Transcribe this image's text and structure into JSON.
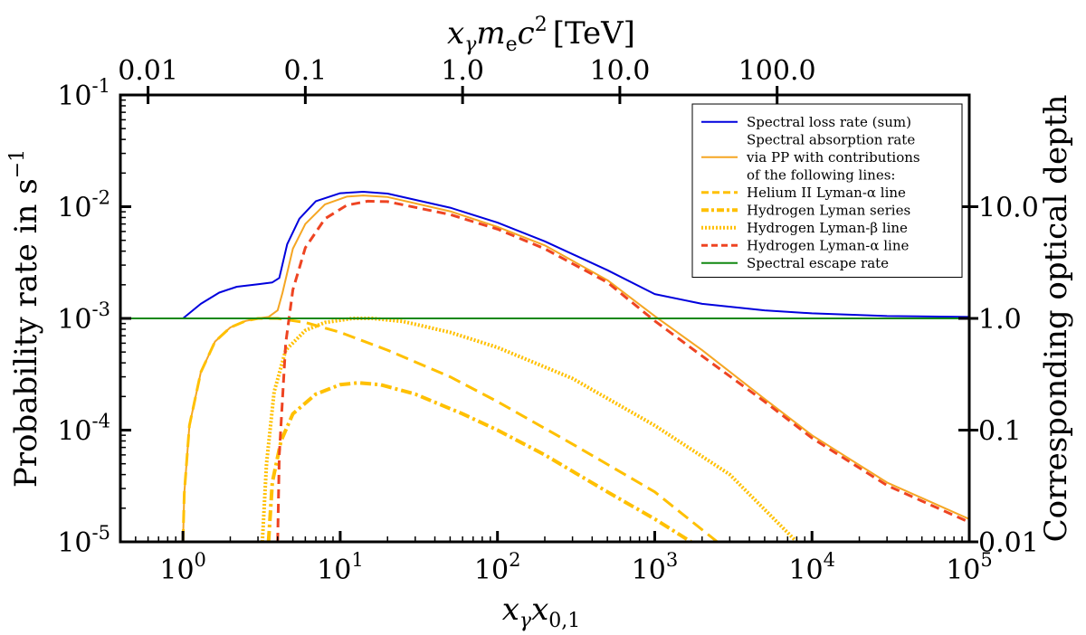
{
  "chart_data": {
    "type": "line",
    "xscale": "log",
    "yscale": "log",
    "xlim": [
      0.4,
      100000
    ],
    "ylim": [
      1e-05,
      0.1
    ],
    "xlabel_main": "x",
    "xlabel_sub1": "γ",
    "xlabel_mid": "x",
    "xlabel_sub2": "0,1",
    "ylabel_left": "Probability rate in s",
    "ylabel_left_sup": "−1",
    "ylabel_right": "Corresponding optical depth",
    "top_axis_label": "x",
    "top_axis_sub": "γ",
    "top_axis_m": "m",
    "top_axis_e": "e",
    "top_axis_c": "c",
    "top_axis_sup": "2",
    "top_axis_unit": "[TeV]",
    "x_ticks": [
      {
        "value": 1,
        "base": "10",
        "exp": "0"
      },
      {
        "value": 10,
        "base": "10",
        "exp": "1"
      },
      {
        "value": 100,
        "base": "10",
        "exp": "2"
      },
      {
        "value": 1000,
        "base": "10",
        "exp": "3"
      },
      {
        "value": 10000,
        "base": "10",
        "exp": "4"
      },
      {
        "value": 100000,
        "base": "10",
        "exp": "5"
      }
    ],
    "y_ticks": [
      {
        "value": 1e-05,
        "base": "10",
        "exp": "-5"
      },
      {
        "value": 0.0001,
        "base": "10",
        "exp": "-4"
      },
      {
        "value": 0.001,
        "base": "10",
        "exp": "-3"
      },
      {
        "value": 0.01,
        "base": "10",
        "exp": "-2"
      },
      {
        "value": 0.1,
        "base": "10",
        "exp": "-1"
      }
    ],
    "top_ticks": [
      {
        "value": 0.01,
        "x": 0.6,
        "label": "0.01"
      },
      {
        "value": 0.1,
        "x": 6,
        "label": "0.1"
      },
      {
        "value": 1.0,
        "x": 60,
        "label": "1.0"
      },
      {
        "value": 10.0,
        "x": 600,
        "label": "10.0"
      },
      {
        "value": 100.0,
        "x": 6000,
        "label": "100.0"
      }
    ],
    "right_ticks": [
      {
        "value": 0.01,
        "y": 1e-05,
        "label": "0.01"
      },
      {
        "value": 0.1,
        "y": 0.0001,
        "label": "0.1"
      },
      {
        "value": 1.0,
        "y": 0.001,
        "label": "1.0"
      },
      {
        "value": 10.0,
        "y": 0.01,
        "label": "10.0"
      }
    ],
    "series": [
      {
        "name": "Spectral loss rate (sum)",
        "color": "#0000dd",
        "dash": "",
        "width": 2,
        "points": [
          [
            0.4,
            0.001
          ],
          [
            1.0,
            0.001
          ],
          [
            1.3,
            0.00135
          ],
          [
            1.7,
            0.0017
          ],
          [
            2.2,
            0.00192
          ],
          [
            3.0,
            0.00202
          ],
          [
            3.7,
            0.0021
          ],
          [
            4.1,
            0.0023
          ],
          [
            4.6,
            0.0046
          ],
          [
            5.5,
            0.0078
          ],
          [
            7,
            0.0112
          ],
          [
            10,
            0.0132
          ],
          [
            14,
            0.0136
          ],
          [
            20,
            0.0131
          ],
          [
            50,
            0.0098
          ],
          [
            100,
            0.0072
          ],
          [
            200,
            0.0049
          ],
          [
            500,
            0.0027
          ],
          [
            1000,
            0.00165
          ],
          [
            2000,
            0.00135
          ],
          [
            5000,
            0.00118
          ],
          [
            10000,
            0.00111
          ],
          [
            30000,
            0.00105
          ],
          [
            100000,
            0.00103
          ]
        ]
      },
      {
        "name": "Spectral absorption rate via PP with contributions of the following lines:",
        "color": "#f5a623",
        "dash": "",
        "width": 2,
        "points": [
          [
            1.0,
            1e-05
          ],
          [
            1.02,
            2.7e-05
          ],
          [
            1.1,
            0.00011
          ],
          [
            1.3,
            0.00033
          ],
          [
            1.6,
            0.00062
          ],
          [
            2.0,
            0.00083
          ],
          [
            2.5,
            0.00095
          ],
          [
            3.0,
            0.001
          ],
          [
            3.5,
            0.00103
          ],
          [
            4.0,
            0.00118
          ],
          [
            4.3,
            0.0017
          ],
          [
            5,
            0.0042
          ],
          [
            6,
            0.007
          ],
          [
            8,
            0.0105
          ],
          [
            11,
            0.0123
          ],
          [
            14,
            0.0126
          ],
          [
            20,
            0.0122
          ],
          [
            50,
            0.0091
          ],
          [
            100,
            0.0066
          ],
          [
            200,
            0.0045
          ],
          [
            500,
            0.0022
          ],
          [
            1000,
            0.00105
          ],
          [
            2000,
            0.00052
          ],
          [
            5000,
            0.00019
          ],
          [
            10000,
            9e-05
          ],
          [
            30000,
            3.4e-05
          ],
          [
            100000,
            1.6e-05
          ]
        ]
      },
      {
        "name": "Helium II Lyman-α line",
        "color": "#ffc000",
        "dash": "14 7",
        "width": 3,
        "points": [
          [
            1.0,
            1e-05
          ],
          [
            1.02,
            2.7e-05
          ],
          [
            1.1,
            0.00011
          ],
          [
            1.3,
            0.00033
          ],
          [
            1.6,
            0.00062
          ],
          [
            2.0,
            0.00083
          ],
          [
            2.5,
            0.00095
          ],
          [
            3.0,
            0.001
          ],
          [
            4.0,
            0.001
          ],
          [
            6,
            0.00092
          ],
          [
            10,
            0.00075
          ],
          [
            20,
            0.00052
          ],
          [
            50,
            0.0003
          ],
          [
            100,
            0.00018
          ],
          [
            300,
            7.5e-05
          ],
          [
            1000,
            2.8e-05
          ],
          [
            2500,
            1e-05
          ]
        ]
      },
      {
        "name": "Hydrogen Lyman series",
        "color": "#ffc000",
        "dash": "12 4 3 4",
        "width": 4,
        "points": [
          [
            3.5,
            1e-05
          ],
          [
            3.7,
            3.4e-05
          ],
          [
            4.2,
            8e-05
          ],
          [
            5,
            0.00014
          ],
          [
            7,
            0.00021
          ],
          [
            10,
            0.000255
          ],
          [
            13,
            0.000265
          ],
          [
            18,
            0.000255
          ],
          [
            30,
            0.00021
          ],
          [
            60,
            0.00014
          ],
          [
            100,
            0.0001
          ],
          [
            200,
            6e-05
          ],
          [
            500,
            2.8e-05
          ],
          [
            1000,
            1.6e-05
          ],
          [
            1700,
            1e-05
          ]
        ]
      },
      {
        "name": "Hydrogen Lyman-β line",
        "color": "#ffc000",
        "dash": "2 2",
        "width": 4,
        "points": [
          [
            3.2,
            1e-05
          ],
          [
            3.4,
            5e-05
          ],
          [
            3.8,
            0.00022
          ],
          [
            4.5,
            0.00052
          ],
          [
            6,
            0.00078
          ],
          [
            8,
            0.00092
          ],
          [
            12,
            0.001
          ],
          [
            16,
            0.001
          ],
          [
            25,
            0.00094
          ],
          [
            50,
            0.00075
          ],
          [
            100,
            0.00055
          ],
          [
            300,
            0.00029
          ],
          [
            1000,
            0.00011
          ],
          [
            3000,
            4e-05
          ],
          [
            8000,
            1e-05
          ]
        ]
      },
      {
        "name": "Hydrogen Lyman-α line",
        "color": "#ee4422",
        "dash": "10 6",
        "width": 3,
        "points": [
          [
            4.0,
            1e-05
          ],
          [
            4.1,
            6e-05
          ],
          [
            4.5,
            0.0006
          ],
          [
            5,
            0.0018
          ],
          [
            6,
            0.0043
          ],
          [
            8,
            0.0078
          ],
          [
            11,
            0.0103
          ],
          [
            15,
            0.0112
          ],
          [
            20,
            0.0111
          ],
          [
            50,
            0.0085
          ],
          [
            100,
            0.0063
          ],
          [
            200,
            0.0042
          ],
          [
            500,
            0.0021
          ],
          [
            1000,
            0.00095
          ],
          [
            2000,
            0.00046
          ],
          [
            5000,
            0.00018
          ],
          [
            10000,
            8.5e-05
          ],
          [
            30000,
            3.2e-05
          ],
          [
            100000,
            1.5e-05
          ]
        ]
      },
      {
        "name": "Spectral escape rate",
        "color": "#118811",
        "dash": "",
        "width": 2,
        "points": [
          [
            0.4,
            0.001
          ],
          [
            100000,
            0.001
          ]
        ]
      }
    ],
    "legend": {
      "placement": "top-right",
      "entries": [
        {
          "lines": [
            "Spectral loss rate (sum)"
          ],
          "color": "#0000dd",
          "dash": "",
          "width": 2
        },
        {
          "lines": [
            "Spectral absorption rate",
            "via PP with contributions",
            "of the following lines:"
          ],
          "color": "#f5a623",
          "dash": "",
          "width": 2
        },
        {
          "lines": [
            "Helium II Lyman-α line"
          ],
          "color": "#ffc000",
          "dash": "8 4",
          "width": 3
        },
        {
          "lines": [
            "Hydrogen Lyman series"
          ],
          "color": "#ffc000",
          "dash": "8 3 3 3",
          "width": 4
        },
        {
          "lines": [
            "Hydrogen Lyman-β line"
          ],
          "color": "#ffc000",
          "dash": "2 2",
          "width": 4
        },
        {
          "lines": [
            "Hydrogen Lyman-α line"
          ],
          "color": "#ee4422",
          "dash": "7 4",
          "width": 3
        },
        {
          "lines": [
            "Spectral escape rate"
          ],
          "color": "#118811",
          "dash": "",
          "width": 2
        }
      ]
    }
  }
}
